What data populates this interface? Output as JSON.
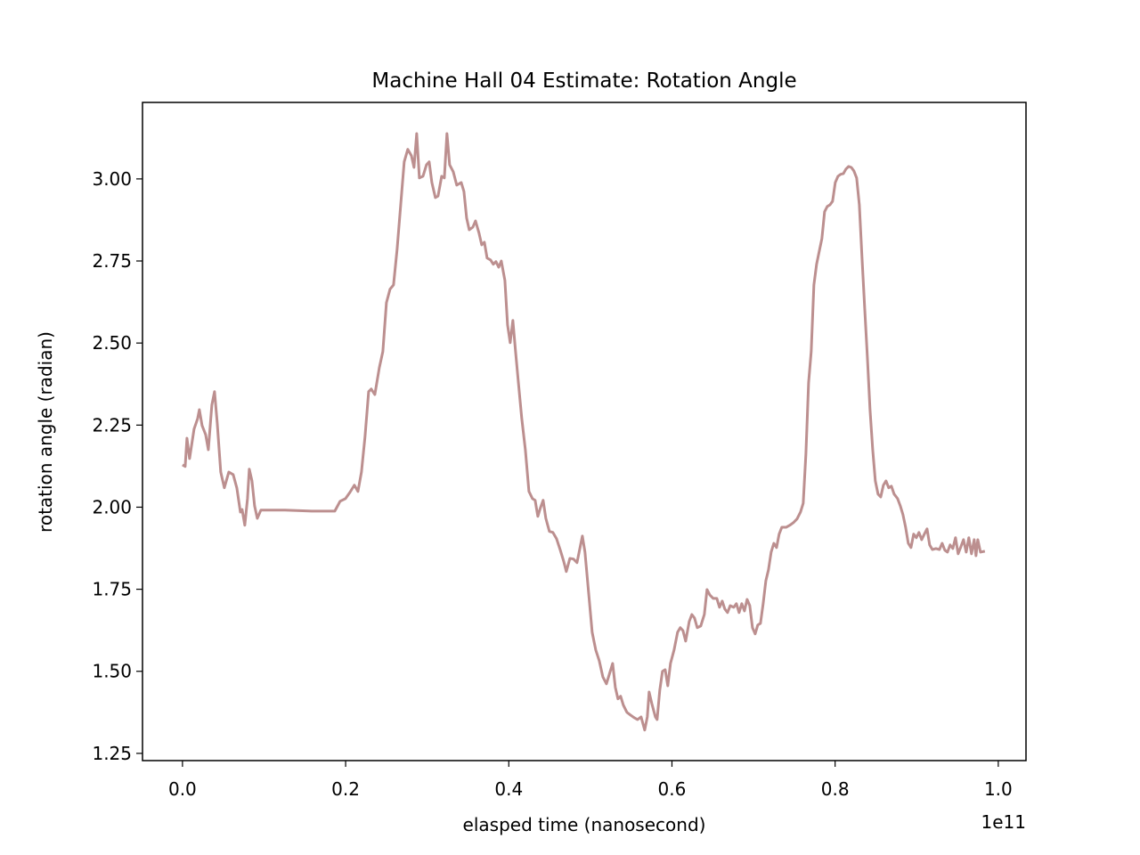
{
  "chart_data": {
    "type": "line",
    "title": "Machine Hall 04 Estimate: Rotation Angle",
    "x_label": "elasped time (nanosecond)",
    "y_label": "rotation angle (radian)",
    "x_offset_label": "1e11",
    "xlim": [
      -0.049,
      1.034
    ],
    "ylim": [
      1.228,
      3.233
    ],
    "xticks": [
      {
        "value": 0,
        "label": "0.0"
      },
      0.2,
      0.4,
      0.6,
      0.8,
      {
        "value": 1,
        "label": "1.0"
      }
    ],
    "yticks": [
      {
        "value": 1.25,
        "label": "1.25"
      },
      {
        "value": 1.5,
        "label": "1.50"
      },
      {
        "value": 1.75,
        "label": "1.75"
      },
      {
        "value": 2,
        "label": "2.00"
      },
      {
        "value": 2.25,
        "label": "2.25"
      },
      {
        "value": 2.5,
        "label": "2.50"
      },
      {
        "value": 2.75,
        "label": "2.75"
      },
      {
        "value": 3,
        "label": "3.00"
      }
    ],
    "grid": false,
    "x": [
      0,
      0.0033,
      0.0055,
      0.0087,
      0.0142,
      0.0186,
      0.0207,
      0.024,
      0.0284,
      0.0317,
      0.036,
      0.0393,
      0.0426,
      0.0469,
      0.0513,
      0.0568,
      0.0622,
      0.0666,
      0.071,
      0.0731,
      0.0764,
      0.0797,
      0.0819,
      0.0852,
      0.0884,
      0.0917,
      0.0961,
      0.1255,
      0.1583,
      0.1867,
      0.1932,
      0.1998,
      0.2052,
      0.2107,
      0.2151,
      0.2194,
      0.2238,
      0.2282,
      0.2314,
      0.2358,
      0.2413,
      0.2456,
      0.25,
      0.2544,
      0.2587,
      0.2631,
      0.2675,
      0.2718,
      0.2762,
      0.2806,
      0.2838,
      0.2871,
      0.2904,
      0.2948,
      0.2991,
      0.3024,
      0.3057,
      0.31,
      0.3133,
      0.3177,
      0.321,
      0.3242,
      0.3275,
      0.3319,
      0.3362,
      0.3417,
      0.345,
      0.3483,
      0.3515,
      0.3559,
      0.3592,
      0.3635,
      0.3668,
      0.3701,
      0.3734,
      0.3777,
      0.381,
      0.3843,
      0.3876,
      0.3908,
      0.3952,
      0.3985,
      0.4017,
      0.405,
      0.4083,
      0.4116,
      0.4159,
      0.4203,
      0.4247,
      0.429,
      0.4323,
      0.4356,
      0.4389,
      0.4421,
      0.4454,
      0.4498,
      0.4541,
      0.4585,
      0.4629,
      0.4672,
      0.4705,
      0.4749,
      0.4793,
      0.4836,
      0.488,
      0.4902,
      0.4934,
      0.4978,
      0.5022,
      0.5066,
      0.5109,
      0.5153,
      0.5197,
      0.524,
      0.5273,
      0.5306,
      0.5338,
      0.5371,
      0.5404,
      0.5448,
      0.5491,
      0.5535,
      0.5578,
      0.5622,
      0.5666,
      0.5698,
      0.572,
      0.5753,
      0.5797,
      0.5818,
      0.5851,
      0.5884,
      0.5917,
      0.5949,
      0.5982,
      0.6026,
      0.6069,
      0.6102,
      0.6135,
      0.6168,
      0.6212,
      0.6244,
      0.6277,
      0.631,
      0.6353,
      0.6397,
      0.643,
      0.6463,
      0.6506,
      0.655,
      0.6583,
      0.6616,
      0.6648,
      0.6681,
      0.6714,
      0.6757,
      0.679,
      0.6823,
      0.6856,
      0.6889,
      0.6921,
      0.6954,
      0.6987,
      0.702,
      0.7052,
      0.7085,
      0.7118,
      0.7151,
      0.7183,
      0.7216,
      0.7249,
      0.7282,
      0.7314,
      0.7347,
      0.7402,
      0.7445,
      0.7489,
      0.7533,
      0.7576,
      0.7609,
      0.7642,
      0.7675,
      0.7707,
      0.774,
      0.7773,
      0.7806,
      0.7838,
      0.7871,
      0.7904,
      0.7937,
      0.7969,
      0.8002,
      0.8035,
      0.8068,
      0.8101,
      0.8133,
      0.8166,
      0.8199,
      0.8231,
      0.8264,
      0.8297,
      0.833,
      0.8362,
      0.8395,
      0.8428,
      0.8461,
      0.8493,
      0.8526,
      0.8559,
      0.8592,
      0.8624,
      0.8657,
      0.869,
      0.8723,
      0.8766,
      0.8799,
      0.8832,
      0.8864,
      0.8897,
      0.893,
      0.8963,
      0.8996,
      0.9028,
      0.9061,
      0.9094,
      0.9127,
      0.9159,
      0.9192,
      0.9236,
      0.9279,
      0.9312,
      0.9345,
      0.9377,
      0.941,
      0.9443,
      0.9476,
      0.9508,
      0.9541,
      0.9574,
      0.9607,
      0.9639,
      0.9672,
      0.9705,
      0.9727,
      0.9749,
      0.9782,
      0.9836
    ],
    "series": [
      {
        "color": "#bc8f8f",
        "values": [
          2.129,
          2.124,
          2.21,
          2.148,
          2.238,
          2.27,
          2.297,
          2.249,
          2.221,
          2.175,
          2.311,
          2.352,
          2.257,
          2.107,
          2.059,
          2.107,
          2.099,
          2.059,
          1.985,
          1.993,
          1.945,
          2.026,
          2.116,
          2.08,
          2.004,
          1.966,
          1.991,
          1.991,
          1.988,
          1.988,
          2.018,
          2.026,
          2.045,
          2.067,
          2.048,
          2.107,
          2.216,
          2.352,
          2.36,
          2.343,
          2.425,
          2.474,
          2.623,
          2.664,
          2.677,
          2.786,
          2.921,
          3.052,
          3.09,
          3.071,
          3.035,
          3.138,
          3.003,
          3.008,
          3.043,
          3.052,
          2.989,
          2.943,
          2.948,
          3.008,
          3.003,
          3.138,
          3.043,
          3.022,
          2.981,
          2.989,
          2.962,
          2.881,
          2.845,
          2.853,
          2.872,
          2.835,
          2.799,
          2.807,
          2.759,
          2.753,
          2.74,
          2.748,
          2.731,
          2.75,
          2.691,
          2.555,
          2.501,
          2.569,
          2.474,
          2.384,
          2.27,
          2.175,
          2.048,
          2.026,
          2.021,
          1.972,
          1.999,
          2.021,
          1.966,
          1.926,
          1.923,
          1.904,
          1.871,
          1.836,
          1.804,
          1.844,
          1.842,
          1.831,
          1.885,
          1.912,
          1.863,
          1.741,
          1.619,
          1.565,
          1.532,
          1.483,
          1.462,
          1.497,
          1.524,
          1.451,
          1.416,
          1.424,
          1.397,
          1.375,
          1.367,
          1.359,
          1.353,
          1.361,
          1.321,
          1.361,
          1.437,
          1.402,
          1.361,
          1.353,
          1.443,
          1.5,
          1.505,
          1.456,
          1.524,
          1.565,
          1.619,
          1.633,
          1.624,
          1.592,
          1.652,
          1.673,
          1.662,
          1.633,
          1.638,
          1.673,
          1.749,
          1.733,
          1.722,
          1.722,
          1.695,
          1.714,
          1.69,
          1.679,
          1.7,
          1.695,
          1.706,
          1.679,
          1.706,
          1.684,
          1.719,
          1.7,
          1.633,
          1.614,
          1.641,
          1.646,
          1.706,
          1.776,
          1.809,
          1.863,
          1.89,
          1.877,
          1.918,
          1.939,
          1.939,
          1.945,
          1.953,
          1.964,
          1.985,
          2.012,
          2.162,
          2.379,
          2.474,
          2.677,
          2.74,
          2.78,
          2.818,
          2.9,
          2.916,
          2.921,
          2.932,
          2.989,
          3.008,
          3.014,
          3.016,
          3.03,
          3.038,
          3.035,
          3.024,
          3.003,
          2.921,
          2.759,
          2.609,
          2.46,
          2.297,
          2.175,
          2.08,
          2.04,
          2.031,
          2.067,
          2.08,
          2.059,
          2.064,
          2.04,
          2.026,
          2.004,
          1.977,
          1.939,
          1.89,
          1.877,
          1.918,
          1.907,
          1.923,
          1.901,
          1.918,
          1.934,
          1.885,
          1.871,
          1.874,
          1.871,
          1.89,
          1.869,
          1.863,
          1.885,
          1.874,
          1.907,
          1.858,
          1.879,
          1.901,
          1.863,
          1.907,
          1.858,
          1.901,
          1.852,
          1.901,
          1.863,
          1.866
        ]
      }
    ]
  }
}
